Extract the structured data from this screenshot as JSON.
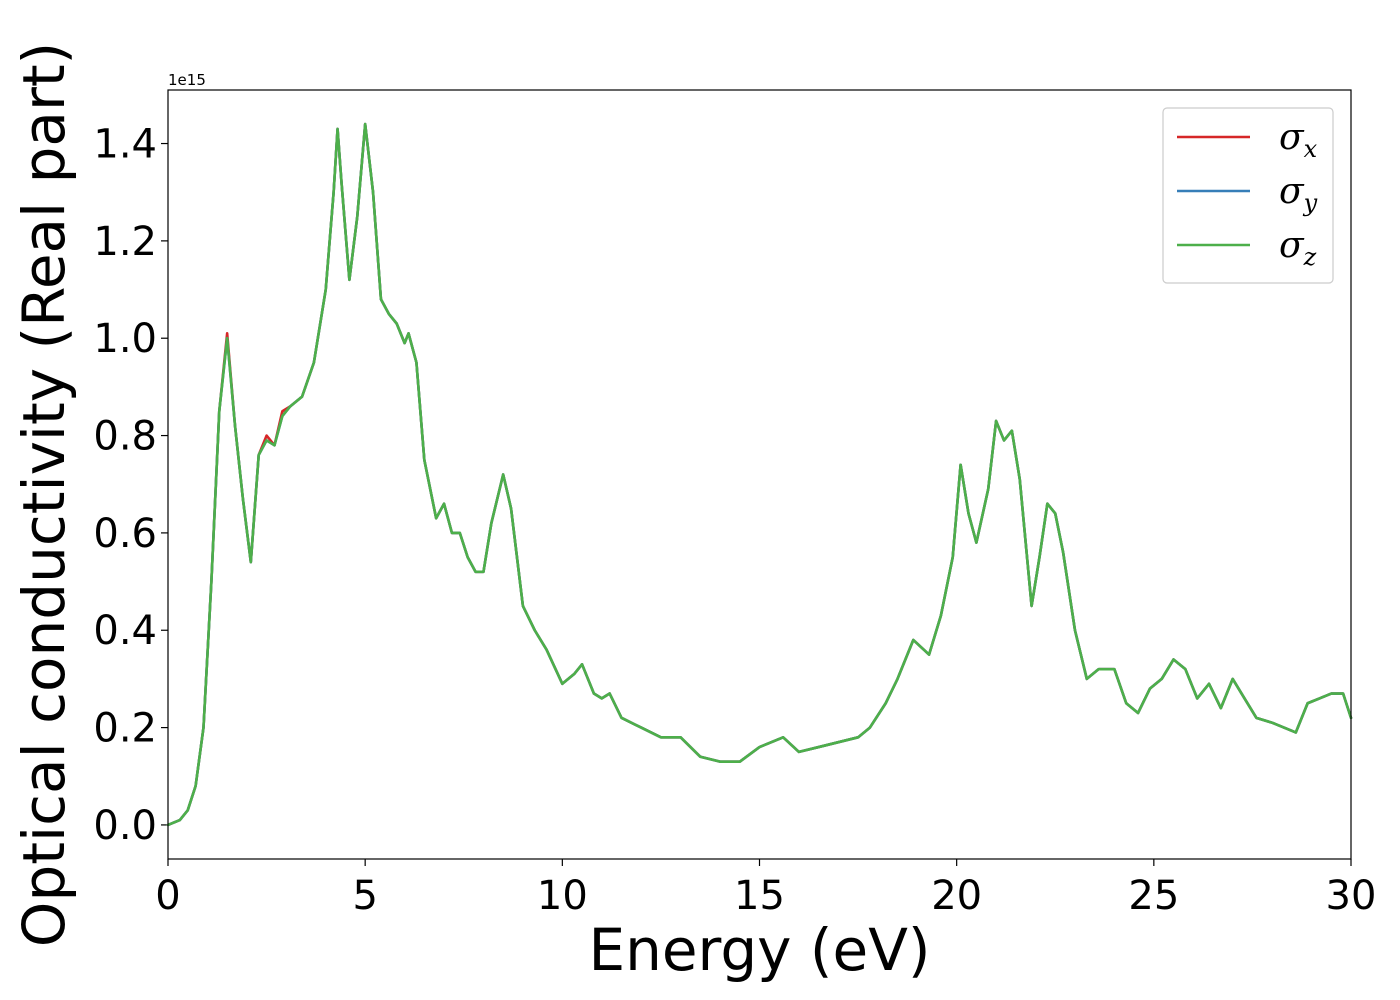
{
  "chart_data": {
    "type": "line",
    "xlabel": "Energy (eV)",
    "ylabel": "Optical conductivity (Real part)",
    "y_offset_text": "1e15",
    "y_multiplier": 1000000000000000.0,
    "xlim": [
      0,
      30
    ],
    "ylim": [
      -0.07,
      1.51
    ],
    "x_ticks": [
      0,
      5,
      10,
      15,
      20,
      25,
      30
    ],
    "x_tick_labels": [
      "0",
      "5",
      "10",
      "15",
      "20",
      "25",
      "30"
    ],
    "y_ticks": [
      0.0,
      0.2,
      0.4,
      0.6,
      0.8,
      1.0,
      1.2,
      1.4
    ],
    "y_tick_labels": [
      "0.0",
      "0.2",
      "0.4",
      "0.6",
      "0.8",
      "1.0",
      "1.2",
      "1.4"
    ],
    "grid": false,
    "legend_position": "top-right",
    "x": [
      0.0,
      0.3,
      0.5,
      0.7,
      0.9,
      1.1,
      1.3,
      1.5,
      1.7,
      1.9,
      2.1,
      2.3,
      2.5,
      2.7,
      2.9,
      3.1,
      3.4,
      3.7,
      4.0,
      4.2,
      4.3,
      4.4,
      4.6,
      4.8,
      5.0,
      5.2,
      5.4,
      5.6,
      5.8,
      6.0,
      6.1,
      6.3,
      6.5,
      6.8,
      7.0,
      7.2,
      7.4,
      7.6,
      7.8,
      8.0,
      8.2,
      8.5,
      8.7,
      9.0,
      9.3,
      9.6,
      10.0,
      10.3,
      10.5,
      10.8,
      11.0,
      11.2,
      11.5,
      12.0,
      12.5,
      13.0,
      13.5,
      14.0,
      14.5,
      15.0,
      15.3,
      15.6,
      16.0,
      16.5,
      17.0,
      17.5,
      17.8,
      18.2,
      18.5,
      18.9,
      19.3,
      19.6,
      19.9,
      20.1,
      20.3,
      20.5,
      20.8,
      21.0,
      21.2,
      21.4,
      21.6,
      21.9,
      22.1,
      22.3,
      22.5,
      22.7,
      23.0,
      23.3,
      23.6,
      24.0,
      24.3,
      24.6,
      24.9,
      25.2,
      25.5,
      25.8,
      26.1,
      26.4,
      26.7,
      27.0,
      27.3,
      27.6,
      28.0,
      28.3,
      28.6,
      28.9,
      29.2,
      29.5,
      29.8,
      30.0
    ],
    "series": [
      {
        "name": "σx",
        "color": "#d62728",
        "values": [
          0.0,
          0.01,
          0.03,
          0.08,
          0.2,
          0.5,
          0.85,
          1.01,
          0.82,
          0.67,
          0.54,
          0.76,
          0.8,
          0.78,
          0.85,
          0.86,
          0.88,
          0.95,
          1.1,
          1.3,
          1.43,
          1.32,
          1.12,
          1.25,
          1.44,
          1.3,
          1.08,
          1.05,
          1.03,
          0.99,
          1.01,
          0.95,
          0.75,
          0.63,
          0.66,
          0.6,
          0.6,
          0.55,
          0.52,
          0.52,
          0.62,
          0.72,
          0.65,
          0.45,
          0.4,
          0.36,
          0.29,
          0.31,
          0.33,
          0.27,
          0.26,
          0.27,
          0.22,
          0.2,
          0.18,
          0.18,
          0.14,
          0.13,
          0.13,
          0.16,
          0.17,
          0.18,
          0.15,
          0.16,
          0.17,
          0.18,
          0.2,
          0.25,
          0.3,
          0.38,
          0.35,
          0.43,
          0.55,
          0.74,
          0.64,
          0.58,
          0.69,
          0.83,
          0.79,
          0.81,
          0.71,
          0.45,
          0.55,
          0.66,
          0.64,
          0.56,
          0.4,
          0.3,
          0.32,
          0.32,
          0.25,
          0.23,
          0.28,
          0.3,
          0.34,
          0.32,
          0.26,
          0.29,
          0.24,
          0.3,
          0.26,
          0.22,
          0.21,
          0.2,
          0.19,
          0.25,
          0.26,
          0.27,
          0.27,
          0.22
        ]
      },
      {
        "name": "σy",
        "color": "#377eb8",
        "values": [
          0.0,
          0.01,
          0.03,
          0.08,
          0.2,
          0.5,
          0.85,
          1.0,
          0.82,
          0.67,
          0.54,
          0.76,
          0.79,
          0.78,
          0.84,
          0.86,
          0.88,
          0.95,
          1.1,
          1.3,
          1.43,
          1.32,
          1.12,
          1.25,
          1.44,
          1.3,
          1.08,
          1.05,
          1.03,
          0.99,
          1.01,
          0.95,
          0.75,
          0.63,
          0.66,
          0.6,
          0.6,
          0.55,
          0.52,
          0.52,
          0.62,
          0.72,
          0.65,
          0.45,
          0.4,
          0.36,
          0.29,
          0.31,
          0.33,
          0.27,
          0.26,
          0.27,
          0.22,
          0.2,
          0.18,
          0.18,
          0.14,
          0.13,
          0.13,
          0.16,
          0.17,
          0.18,
          0.15,
          0.16,
          0.17,
          0.18,
          0.2,
          0.25,
          0.3,
          0.38,
          0.35,
          0.43,
          0.55,
          0.74,
          0.64,
          0.58,
          0.69,
          0.83,
          0.79,
          0.81,
          0.71,
          0.45,
          0.55,
          0.66,
          0.64,
          0.56,
          0.4,
          0.3,
          0.32,
          0.32,
          0.25,
          0.23,
          0.28,
          0.3,
          0.34,
          0.32,
          0.26,
          0.29,
          0.24,
          0.3,
          0.26,
          0.22,
          0.21,
          0.2,
          0.19,
          0.25,
          0.26,
          0.27,
          0.27,
          0.22
        ]
      },
      {
        "name": "σz",
        "color": "#4daf4a",
        "values": [
          0.0,
          0.01,
          0.03,
          0.08,
          0.2,
          0.5,
          0.85,
          1.0,
          0.82,
          0.67,
          0.54,
          0.76,
          0.79,
          0.78,
          0.84,
          0.86,
          0.88,
          0.95,
          1.1,
          1.3,
          1.43,
          1.32,
          1.12,
          1.25,
          1.44,
          1.3,
          1.08,
          1.05,
          1.03,
          0.99,
          1.01,
          0.95,
          0.75,
          0.63,
          0.66,
          0.6,
          0.6,
          0.55,
          0.52,
          0.52,
          0.62,
          0.72,
          0.65,
          0.45,
          0.4,
          0.36,
          0.29,
          0.31,
          0.33,
          0.27,
          0.26,
          0.27,
          0.22,
          0.2,
          0.18,
          0.18,
          0.14,
          0.13,
          0.13,
          0.16,
          0.17,
          0.18,
          0.15,
          0.16,
          0.17,
          0.18,
          0.2,
          0.25,
          0.3,
          0.38,
          0.35,
          0.43,
          0.55,
          0.74,
          0.64,
          0.58,
          0.69,
          0.83,
          0.79,
          0.81,
          0.71,
          0.45,
          0.55,
          0.66,
          0.64,
          0.56,
          0.4,
          0.3,
          0.32,
          0.32,
          0.25,
          0.23,
          0.28,
          0.3,
          0.34,
          0.32,
          0.26,
          0.29,
          0.24,
          0.3,
          0.26,
          0.22,
          0.21,
          0.2,
          0.19,
          0.25,
          0.26,
          0.27,
          0.27,
          0.22
        ]
      }
    ],
    "legend": [
      {
        "symbol": "σ",
        "sub": "x",
        "color": "#d62728"
      },
      {
        "symbol": "σ",
        "sub": "y",
        "color": "#377eb8"
      },
      {
        "symbol": "σ",
        "sub": "z",
        "color": "#4daf4a"
      }
    ]
  }
}
